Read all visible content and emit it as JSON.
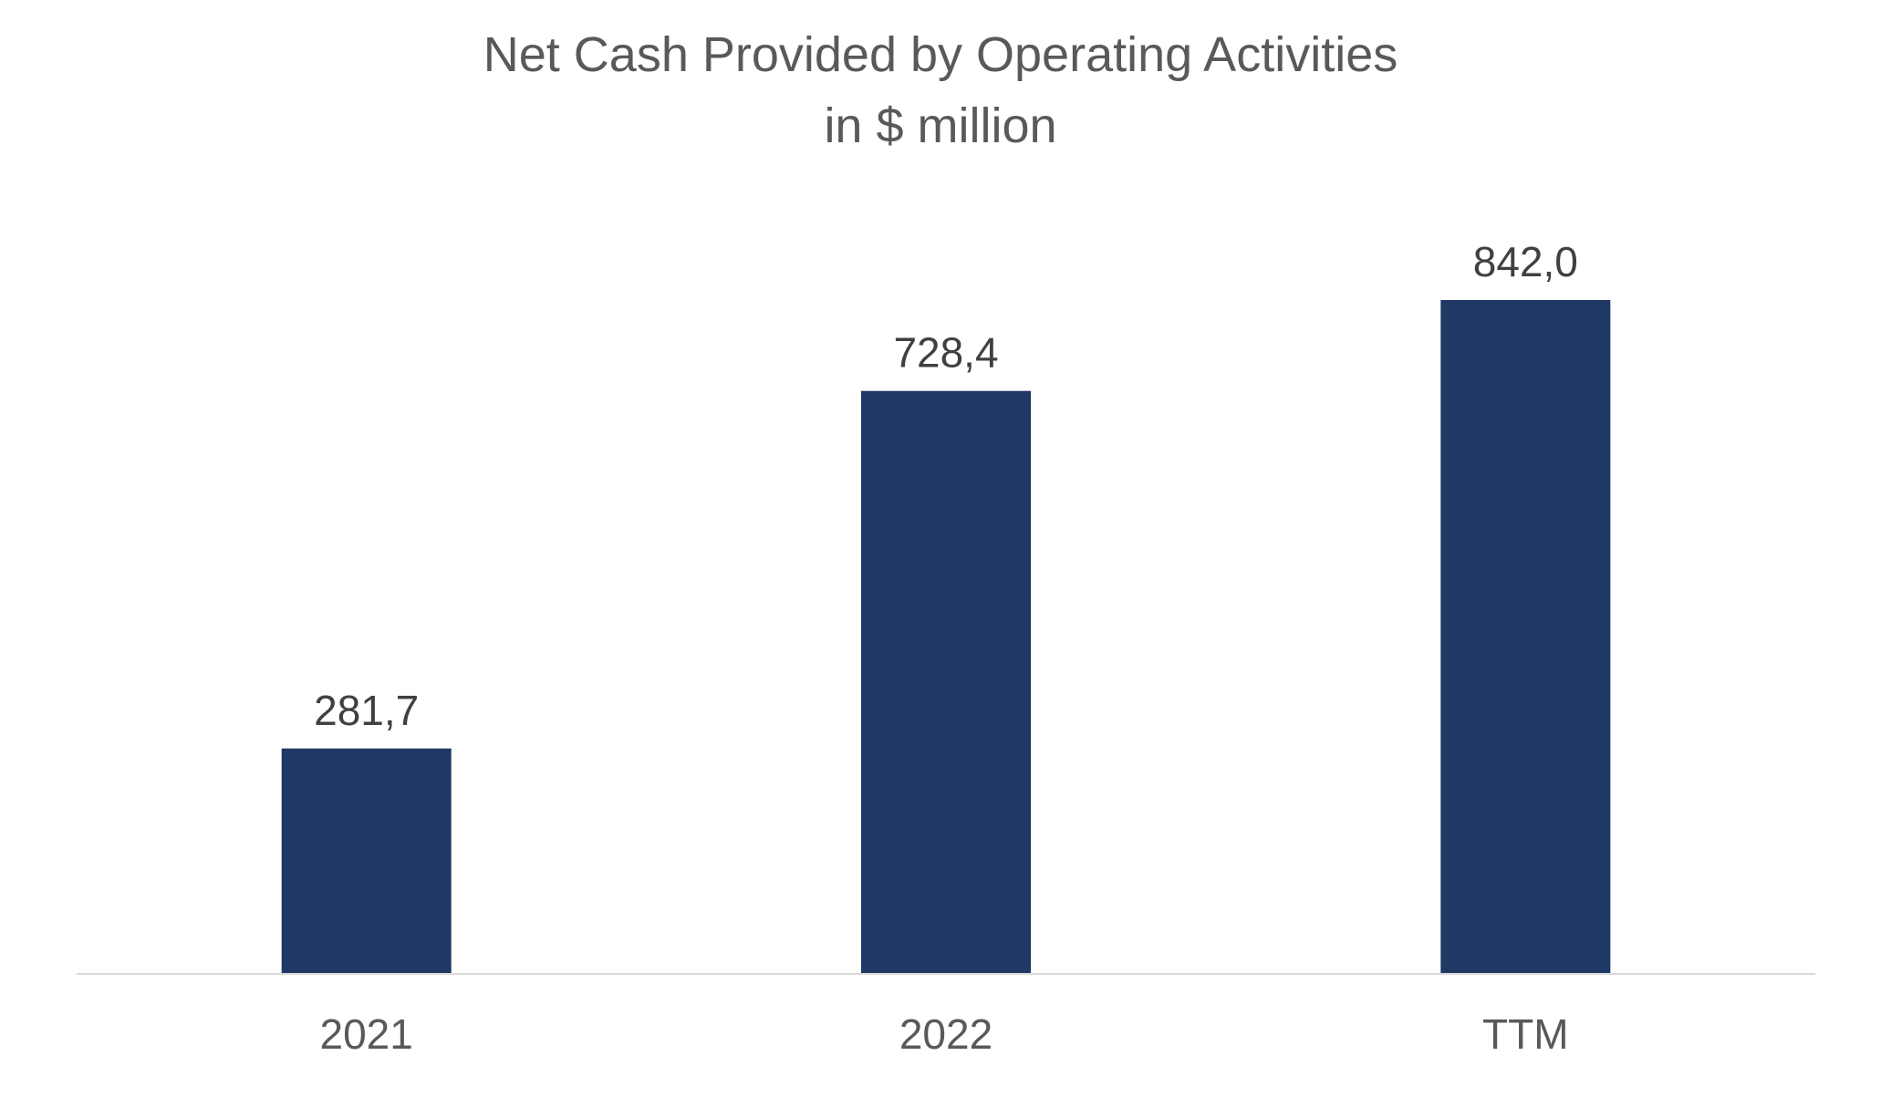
{
  "chart_data": {
    "type": "bar",
    "title": "Net Cash Provided by Operating Activities",
    "subtitle": "in $ million",
    "categories": [
      "2021",
      "2022",
      "TTM"
    ],
    "values": [
      281.7,
      728.4,
      842.0
    ],
    "data_labels": [
      "281,7",
      "728,4",
      "842,0"
    ],
    "xlabel": "",
    "ylabel": "",
    "ylim": [
      0,
      842.0
    ],
    "grid": false,
    "legend": "none",
    "bar_color": "#203864",
    "axis_color": "#d9d9d9"
  }
}
